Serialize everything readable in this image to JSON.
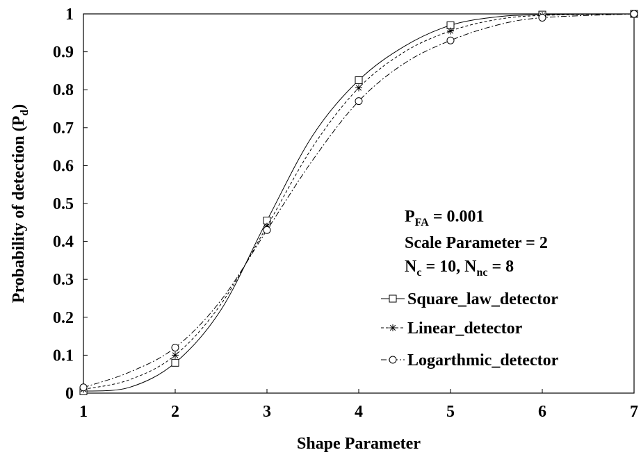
{
  "chart_data": {
    "type": "line",
    "title": "",
    "xlabel": "Shape Parameter",
    "ylabel": {
      "main": "Probability of detection (P",
      "sub": "d",
      "close": ")"
    },
    "xlim": [
      1,
      7
    ],
    "ylim": [
      0,
      1
    ],
    "x_ticks": [
      "1",
      "2",
      "3",
      "4",
      "5",
      "6",
      "7"
    ],
    "y_ticks": [
      "0",
      "0.1",
      "0.2",
      "0.3",
      "0.4",
      "0.5",
      "0.6",
      "0.7",
      "0.8",
      "0.9",
      "1"
    ],
    "grid": false,
    "legend_position": "right",
    "annotations": [
      {
        "main": "P",
        "sub": "FA",
        "rest": " = 0.001"
      },
      {
        "text": "Scale Parameter = 2"
      },
      {
        "main": "N",
        "sub": "c",
        "mid": " = 10, N",
        "sub2": "nc",
        "rest": " = 8"
      }
    ],
    "x": [
      1,
      2,
      3,
      4,
      5,
      6,
      7
    ],
    "series": [
      {
        "name": "Square_law_detector",
        "marker": "square",
        "dash": "solid",
        "values": [
          0.005,
          0.08,
          0.455,
          0.825,
          0.97,
          0.998,
          1.0
        ],
        "curve": [
          [
            1,
            0.005
          ],
          [
            1.5,
            0.015
          ],
          [
            2,
            0.08
          ],
          [
            2.5,
            0.22
          ],
          [
            3,
            0.455
          ],
          [
            3.5,
            0.68
          ],
          [
            4,
            0.825
          ],
          [
            4.5,
            0.915
          ],
          [
            5,
            0.97
          ],
          [
            5.5,
            0.992
          ],
          [
            6,
            0.998
          ],
          [
            7,
            1.0
          ]
        ]
      },
      {
        "name": "Linear_detector",
        "marker": "star",
        "dash": "dashed",
        "values": [
          0.01,
          0.1,
          0.44,
          0.805,
          0.955,
          0.996,
          1.0
        ],
        "curve": [
          [
            1,
            0.01
          ],
          [
            1.5,
            0.035
          ],
          [
            2,
            0.1
          ],
          [
            2.5,
            0.235
          ],
          [
            3,
            0.44
          ],
          [
            3.5,
            0.65
          ],
          [
            4,
            0.805
          ],
          [
            4.5,
            0.9
          ],
          [
            5,
            0.955
          ],
          [
            5.5,
            0.985
          ],
          [
            6,
            0.996
          ],
          [
            7,
            1.0
          ]
        ]
      },
      {
        "name": "Logarthmic_detector",
        "marker": "circle",
        "dash": "dashdot",
        "values": [
          0.015,
          0.12,
          0.43,
          0.77,
          0.93,
          0.99,
          1.0
        ],
        "curve": [
          [
            1,
            0.015
          ],
          [
            1.5,
            0.055
          ],
          [
            2,
            0.12
          ],
          [
            2.5,
            0.245
          ],
          [
            3,
            0.43
          ],
          [
            3.5,
            0.615
          ],
          [
            4,
            0.77
          ],
          [
            4.5,
            0.87
          ],
          [
            5,
            0.93
          ],
          [
            5.5,
            0.97
          ],
          [
            6,
            0.99
          ],
          [
            7,
            1.0
          ]
        ]
      }
    ]
  }
}
